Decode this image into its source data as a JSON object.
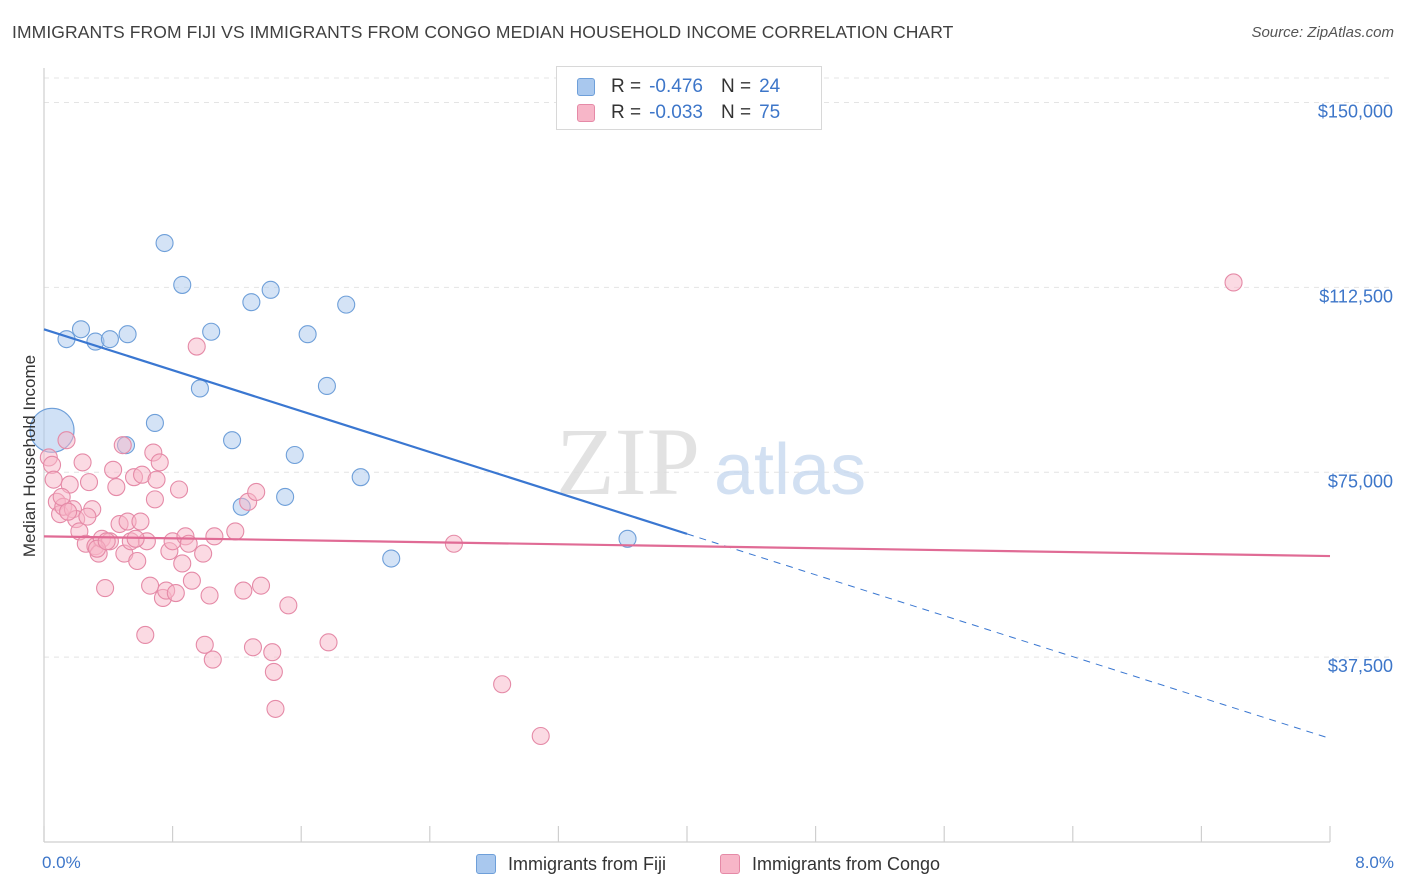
{
  "header": {
    "title": "IMMIGRANTS FROM FIJI VS IMMIGRANTS FROM CONGO MEDIAN HOUSEHOLD INCOME CORRELATION CHART",
    "source": "Source: ZipAtlas.com"
  },
  "watermark": {
    "text_zip": "ZIP",
    "text_atlas": "atlas"
  },
  "legend_top": {
    "rows": [
      {
        "r_label": "R =",
        "r_value": "-0.476",
        "n_label": "N =",
        "n_value": "24",
        "color": "#a9c8ee"
      },
      {
        "r_label": "R =",
        "r_value": "-0.033",
        "n_label": "N =",
        "n_value": "75",
        "color": "#f7b6c8"
      }
    ]
  },
  "legend_bottom": {
    "items": [
      {
        "label": "Immigrants from Fiji",
        "color": "#a9c8ee"
      },
      {
        "label": "Immigrants from Congo",
        "color": "#f7b6c8"
      }
    ]
  },
  "chart_data": {
    "type": "scatter",
    "title": "IMMIGRANTS FROM FIJI VS IMMIGRANTS FROM CONGO MEDIAN HOUSEHOLD INCOME CORRELATION CHART",
    "ylabel": "Median Household Income",
    "xlabel": "",
    "x_tick_labels": {
      "min": "0.0%",
      "max": "8.0%"
    },
    "xlim": [
      0,
      8
    ],
    "ylim": [
      0,
      157000
    ],
    "y_ticks": [
      {
        "value": 37500,
        "label": "$37,500"
      },
      {
        "value": 75000,
        "label": "$75,000"
      },
      {
        "value": 112500,
        "label": "$112,500"
      },
      {
        "value": 150000,
        "label": "$150,000"
      }
    ],
    "grid": true,
    "series": [
      {
        "name": "Immigrants from Fiji",
        "color": "#a9c8ee",
        "stroke": "#6e9fd9",
        "trend": {
          "x0": 0.0,
          "y0": 104000,
          "x1": 4.0,
          "y1": 62500,
          "dash_x1": 8.0,
          "dash_y1": 21000,
          "color": "#3a77d1"
        },
        "points": [
          {
            "x": 0.05,
            "y": 83500,
            "big": true
          },
          {
            "x": 0.14,
            "y": 102000
          },
          {
            "x": 0.23,
            "y": 104000
          },
          {
            "x": 0.32,
            "y": 101500
          },
          {
            "x": 0.41,
            "y": 102000
          },
          {
            "x": 0.52,
            "y": 103000
          },
          {
            "x": 0.75,
            "y": 121500
          },
          {
            "x": 0.86,
            "y": 113000
          },
          {
            "x": 1.04,
            "y": 103500
          },
          {
            "x": 1.29,
            "y": 109500
          },
          {
            "x": 1.41,
            "y": 112000
          },
          {
            "x": 1.64,
            "y": 103000
          },
          {
            "x": 1.88,
            "y": 109000
          },
          {
            "x": 0.97,
            "y": 92000
          },
          {
            "x": 1.76,
            "y": 92500
          },
          {
            "x": 0.69,
            "y": 85000
          },
          {
            "x": 1.17,
            "y": 81500
          },
          {
            "x": 0.51,
            "y": 80500
          },
          {
            "x": 1.56,
            "y": 78500
          },
          {
            "x": 1.97,
            "y": 74000
          },
          {
            "x": 1.5,
            "y": 70000
          },
          {
            "x": 1.23,
            "y": 68000
          },
          {
            "x": 2.16,
            "y": 57500
          },
          {
            "x": 3.63,
            "y": 61500
          }
        ]
      },
      {
        "name": "Immigrants from Congo",
        "color": "#f7b6c8",
        "stroke": "#e58aa7",
        "trend": {
          "x0": 0.0,
          "y0": 62000,
          "x1": 8.0,
          "y1": 58000,
          "color": "#e06b95"
        },
        "points": [
          {
            "x": 7.4,
            "y": 113500
          },
          {
            "x": 0.03,
            "y": 78000
          },
          {
            "x": 0.05,
            "y": 76500
          },
          {
            "x": 0.06,
            "y": 73500
          },
          {
            "x": 0.08,
            "y": 69000
          },
          {
            "x": 0.1,
            "y": 66500
          },
          {
            "x": 0.12,
            "y": 68000
          },
          {
            "x": 0.14,
            "y": 81500
          },
          {
            "x": 0.16,
            "y": 72500
          },
          {
            "x": 0.18,
            "y": 67500
          },
          {
            "x": 0.2,
            "y": 65500
          },
          {
            "x": 0.22,
            "y": 63000
          },
          {
            "x": 0.24,
            "y": 77000
          },
          {
            "x": 0.26,
            "y": 60500
          },
          {
            "x": 0.28,
            "y": 73000
          },
          {
            "x": 0.3,
            "y": 67500
          },
          {
            "x": 0.32,
            "y": 60000
          },
          {
            "x": 0.34,
            "y": 58500
          },
          {
            "x": 0.36,
            "y": 61500
          },
          {
            "x": 0.38,
            "y": 51500
          },
          {
            "x": 0.41,
            "y": 61000
          },
          {
            "x": 0.43,
            "y": 75500
          },
          {
            "x": 0.45,
            "y": 72000
          },
          {
            "x": 0.47,
            "y": 64500
          },
          {
            "x": 0.49,
            "y": 80500
          },
          {
            "x": 0.5,
            "y": 58500
          },
          {
            "x": 0.52,
            "y": 65000
          },
          {
            "x": 0.54,
            "y": 61000
          },
          {
            "x": 0.56,
            "y": 74000
          },
          {
            "x": 0.58,
            "y": 57000
          },
          {
            "x": 0.6,
            "y": 65000
          },
          {
            "x": 0.61,
            "y": 74500
          },
          {
            "x": 0.63,
            "y": 42000
          },
          {
            "x": 0.64,
            "y": 61000
          },
          {
            "x": 0.66,
            "y": 52000
          },
          {
            "x": 0.68,
            "y": 79000
          },
          {
            "x": 0.69,
            "y": 69500
          },
          {
            "x": 0.7,
            "y": 73500
          },
          {
            "x": 0.72,
            "y": 77000
          },
          {
            "x": 0.74,
            "y": 49500
          },
          {
            "x": 0.76,
            "y": 51000
          },
          {
            "x": 0.78,
            "y": 59000
          },
          {
            "x": 0.8,
            "y": 61000
          },
          {
            "x": 0.82,
            "y": 50500
          },
          {
            "x": 0.84,
            "y": 71500
          },
          {
            "x": 0.86,
            "y": 56500
          },
          {
            "x": 0.88,
            "y": 62000
          },
          {
            "x": 0.9,
            "y": 60500
          },
          {
            "x": 0.92,
            "y": 53000
          },
          {
            "x": 0.95,
            "y": 100500
          },
          {
            "x": 0.99,
            "y": 58500
          },
          {
            "x": 1.0,
            "y": 40000
          },
          {
            "x": 1.03,
            "y": 50000
          },
          {
            "x": 1.05,
            "y": 37000
          },
          {
            "x": 1.06,
            "y": 62000
          },
          {
            "x": 1.19,
            "y": 63000
          },
          {
            "x": 1.24,
            "y": 51000
          },
          {
            "x": 1.27,
            "y": 69000
          },
          {
            "x": 1.3,
            "y": 39500
          },
          {
            "x": 1.32,
            "y": 71000
          },
          {
            "x": 1.35,
            "y": 52000
          },
          {
            "x": 1.42,
            "y": 38500
          },
          {
            "x": 1.43,
            "y": 34500
          },
          {
            "x": 1.44,
            "y": 27000
          },
          {
            "x": 1.52,
            "y": 48000
          },
          {
            "x": 1.77,
            "y": 40500
          },
          {
            "x": 2.55,
            "y": 60500
          },
          {
            "x": 2.85,
            "y": 32000
          },
          {
            "x": 3.09,
            "y": 21500
          },
          {
            "x": 0.11,
            "y": 70000
          },
          {
            "x": 0.15,
            "y": 67000
          },
          {
            "x": 0.27,
            "y": 66000
          },
          {
            "x": 0.33,
            "y": 59500
          },
          {
            "x": 0.39,
            "y": 61000
          },
          {
            "x": 0.57,
            "y": 61500
          }
        ]
      }
    ]
  }
}
